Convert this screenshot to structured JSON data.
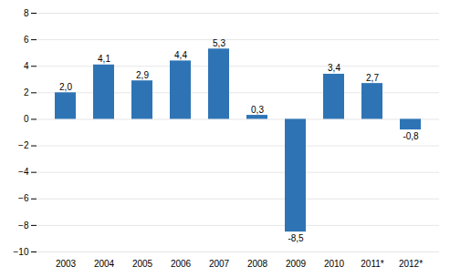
{
  "chart_data": {
    "type": "bar",
    "categories": [
      "2003",
      "2004",
      "2005",
      "2006",
      "2007",
      "2008",
      "2009",
      "2010",
      "2011*",
      "2012*"
    ],
    "values": [
      2.0,
      4.1,
      2.9,
      4.4,
      5.3,
      0.3,
      -8.5,
      3.4,
      2.7,
      -0.8
    ],
    "value_labels": [
      "2,0",
      "4,1",
      "2,9",
      "4,4",
      "5,3",
      "0,3",
      "-8,5",
      "3,4",
      "2,7",
      "-0,8"
    ],
    "data_labels": true,
    "color": "#2E74B5",
    "ylim": [
      -10,
      8
    ],
    "yticks": [
      -10,
      -8,
      -6,
      -4,
      -2,
      0,
      2,
      4,
      6,
      8
    ],
    "grid": true
  }
}
